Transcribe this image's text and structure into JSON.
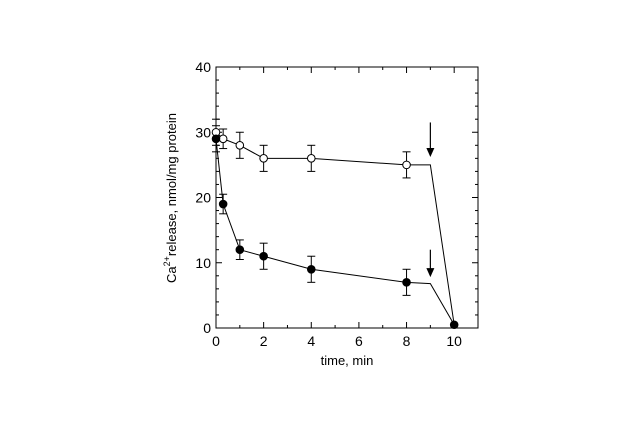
{
  "chart_data": {
    "type": "scatter",
    "xlabel": "time, min",
    "ylabel_main": "Ca",
    "ylabel_sup": "2+",
    "ylabel_rest": "release, nmol/mg protein",
    "xlim": [
      0,
      11
    ],
    "ylim": [
      0,
      40
    ],
    "x_ticks": [
      0,
      2,
      4,
      6,
      8,
      10
    ],
    "y_ticks": [
      0,
      10,
      20,
      30,
      40
    ],
    "grid": false,
    "series": [
      {
        "marker": "open-circle",
        "points": [
          {
            "x": 0,
            "y": 30,
            "err": 2
          },
          {
            "x": 0.3,
            "y": 29,
            "err": 1.5
          },
          {
            "x": 1,
            "y": 28,
            "err": 2
          },
          {
            "x": 2,
            "y": 26,
            "err": 2
          },
          {
            "x": 4,
            "y": 26,
            "err": 2
          },
          {
            "x": 8,
            "y": 25,
            "err": 2
          }
        ],
        "line": [
          [
            0,
            30
          ],
          [
            0.3,
            29
          ],
          [
            1,
            28
          ],
          [
            2,
            26
          ],
          [
            4,
            26
          ],
          [
            8,
            25
          ],
          [
            9,
            25
          ],
          [
            10,
            0.5
          ]
        ],
        "arrow_at": {
          "x": 9,
          "y_from": 31.5,
          "y_to": 26.2
        }
      },
      {
        "marker": "filled-circle",
        "points": [
          {
            "x": 0,
            "y": 29,
            "err": 2
          },
          {
            "x": 0.3,
            "y": 19,
            "err": 1.5
          },
          {
            "x": 1,
            "y": 12,
            "err": 1.5
          },
          {
            "x": 2,
            "y": 11,
            "err": 2
          },
          {
            "x": 4,
            "y": 9,
            "err": 2
          },
          {
            "x": 8,
            "y": 7,
            "err": 2
          },
          {
            "x": 10,
            "y": 0.5,
            "err": 0
          }
        ],
        "line": [
          [
            0,
            29
          ],
          [
            0.3,
            19
          ],
          [
            1,
            12
          ],
          [
            2,
            11
          ],
          [
            4,
            9
          ],
          [
            8,
            7
          ],
          [
            9,
            6.8
          ],
          [
            10,
            0.5
          ]
        ],
        "arrow_at": {
          "x": 9,
          "y_from": 12,
          "y_to": 7.8
        }
      }
    ]
  }
}
